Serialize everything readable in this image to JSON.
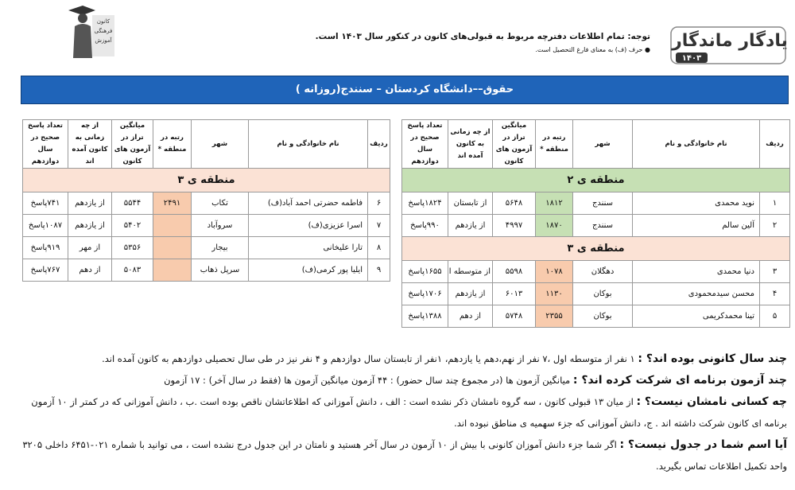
{
  "header": {
    "brand": "یادگار ماندگار",
    "year": "۱۴۰۳",
    "notice": "توجه: تمام اطلاعات دفترچه مربوط به قبولی‌های کانون در کنکور سال ۱۴۰۳ است.",
    "note": "● حرف (ف) به معنای فارغ التحصیل است.",
    "logo_text": [
      "کانون",
      "فرهنگی",
      "آموزش"
    ]
  },
  "banner": "حقوق––دانشگاه کردستان – سنندج(روزانه )",
  "columns": [
    "ردیف",
    "نام خانوادگی و نام",
    "شهر",
    "رتبه در منطقه *",
    "میانگین تراز در آزمون های کانون",
    "از چه زمانی به کانون آمده اند",
    "تعداد پاسخ صحیح در سال دوازدهم"
  ],
  "tables": [
    {
      "sections": [
        {
          "region": "منطقه ی ۲",
          "rows": [
            [
              "۱",
              "نوید محمدی",
              "سنندج",
              "۱۸۱۲",
              "۵۶۴۸",
              "از تابستان",
              "۱۸۲۴پاسخ"
            ],
            [
              "۲",
              "آلین سالم",
              "سنندج",
              "۱۸۷۰",
              "۴۹۹۷",
              "از یازدهم",
              "۹۹۰پاسخ"
            ]
          ]
        },
        {
          "region": "منطقه ی ۳",
          "rows": [
            [
              "۳",
              "دنیا محمدی",
              "دهگلان",
              "۱۰۷۸",
              "۵۵۹۸",
              "از متوسطه اول",
              "۱۶۵۵پاسخ"
            ],
            [
              "۴",
              "محسن سیدمحمودی",
              "بوکان",
              "۱۱۳۰",
              "۶۰۱۳",
              "از یازدهم",
              "۱۷۰۶پاسخ"
            ],
            [
              "۵",
              "تینا محمدکریمی",
              "بوکان",
              "۲۳۵۵",
              "۵۷۴۸",
              "از دهم",
              "۱۳۸۸پاسخ"
            ]
          ]
        }
      ]
    },
    {
      "sections": [
        {
          "region": "منطقه ی ۳",
          "rows": [
            [
              "۶",
              "فاطمه حضرتی احمد آباد(ف)",
              "تکاب",
              "۲۴۹۱",
              "۵۵۴۴",
              "از یازدهم",
              "۷۴۱پاسخ"
            ],
            [
              "۷",
              "اسرا عزیزی(ف)",
              "سروآباد",
              null,
              "۵۴۰۲",
              "از یازدهم",
              "۱۰۸۷پاسخ"
            ],
            [
              "۸",
              "تارا علیخانی",
              "بیجار",
              null,
              "۵۳۵۶",
              "از مهر",
              "۹۱۹پاسخ"
            ],
            [
              "۹",
              "ایلیا پور کرمی(ف)",
              "سرپل ذهاب",
              null,
              "۵۰۸۳",
              "از دهم",
              "۷۶۷پاسخ"
            ]
          ]
        }
      ]
    }
  ],
  "faq": [
    {
      "q": "چند سال کانونی بوده اند؟ :",
      "a": "۱ نفر از متوسطه اول ،۷ نفر از نهم،دهم یا یازدهم، ۱نفر از تابستان سال دوازدهم و ۴ نفر نیز در طی سال تحصیلی دوازدهم به کانون آمده اند."
    },
    {
      "q": "چند آزمون برنامه ای شرکت کرده اند؟ :",
      "a": "میانگین آزمون ها (در مجموع چند سال حضور) : ۴۴ آزمون      میانگین آزمون ها (فقط در سال آخر) : ۱۷ آزمون"
    },
    {
      "q": "چه کسانی نامشان نیست؟ :",
      "a": "از میان ۱۳ قبولی کانون ، سه گروه نامشان ذکر نشده است : الف ، دانش آموزانی که اطلاعاتشان ناقص بوده است .ب ، دانش آموزانی که در کمتر از ۱۰ آزمون برنامه ای کانون شرکت داشته اند . ج، دانش آموزانی که جزء سهمیه ی مناطق نبوده اند."
    },
    {
      "q": "آیا اسم شما در جدول نیست؟ :",
      "a": "اگر شما جزء دانش آموزان کانونی با بیش از ۱۰ آزمون در سال آخر هستید و نامتان در این جدول درج نشده است ، می توانید با شماره ۰۲۱-۶۴۵۱ داخلی ۳۲۰۵ واحد تکمیل اطلاعات تماس بگیرید."
    }
  ]
}
